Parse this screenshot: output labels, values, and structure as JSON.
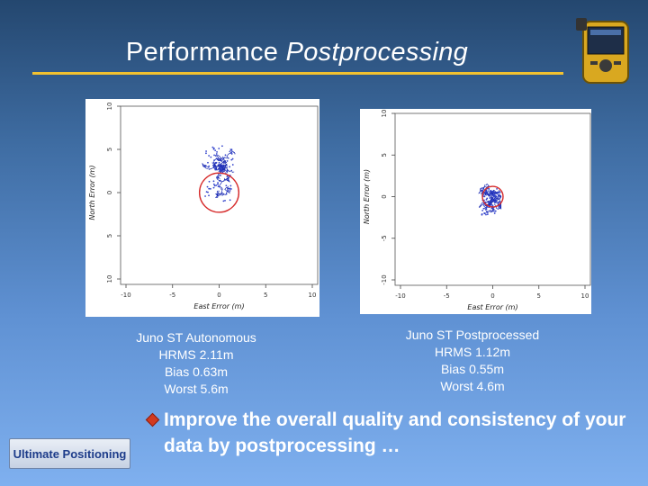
{
  "slide": {
    "title_plain": "Performance",
    "title_italic": "Postprocessing",
    "bullet": "Improve the overall quality and consistency of your data by postprocessing …",
    "logo_text": "Ultimate Positioning"
  },
  "chart_data": [
    {
      "type": "scatter",
      "xlabel": "East Error (m)",
      "ylabel": "North Error (m)",
      "x_ticks": [
        "-10",
        "-5",
        "0",
        "5",
        "10"
      ],
      "y_ticks": [
        "10",
        "5",
        "0",
        "5",
        "10"
      ],
      "xlim": [
        -10,
        10
      ],
      "ylim": [
        -10,
        10
      ],
      "circle_radius_m": 2.11,
      "caption": [
        "Juno ST Autonomous",
        "HRMS 2.11m",
        "Bias 0.63m",
        "Worst 5.6m"
      ]
    },
    {
      "type": "scatter",
      "xlabel": "East Error (m)",
      "ylabel": "North Error (m)",
      "x_ticks": [
        "-10",
        "-5",
        "0",
        "5",
        "10"
      ],
      "y_ticks": [
        "10",
        "5",
        "0",
        "-5",
        "-10"
      ],
      "xlim": [
        -10,
        10
      ],
      "ylim": [
        -10,
        10
      ],
      "circle_radius_m": 1.12,
      "caption": [
        "Juno ST Postprocessed",
        "HRMS 1.12m",
        "Bias 0.55m",
        "Worst 4.6m"
      ]
    }
  ],
  "colors": {
    "accent_rule": "#f2c230",
    "track": "#1f2fb5",
    "error_circle": "#d62a2a",
    "bullet": "#d23a1f"
  }
}
